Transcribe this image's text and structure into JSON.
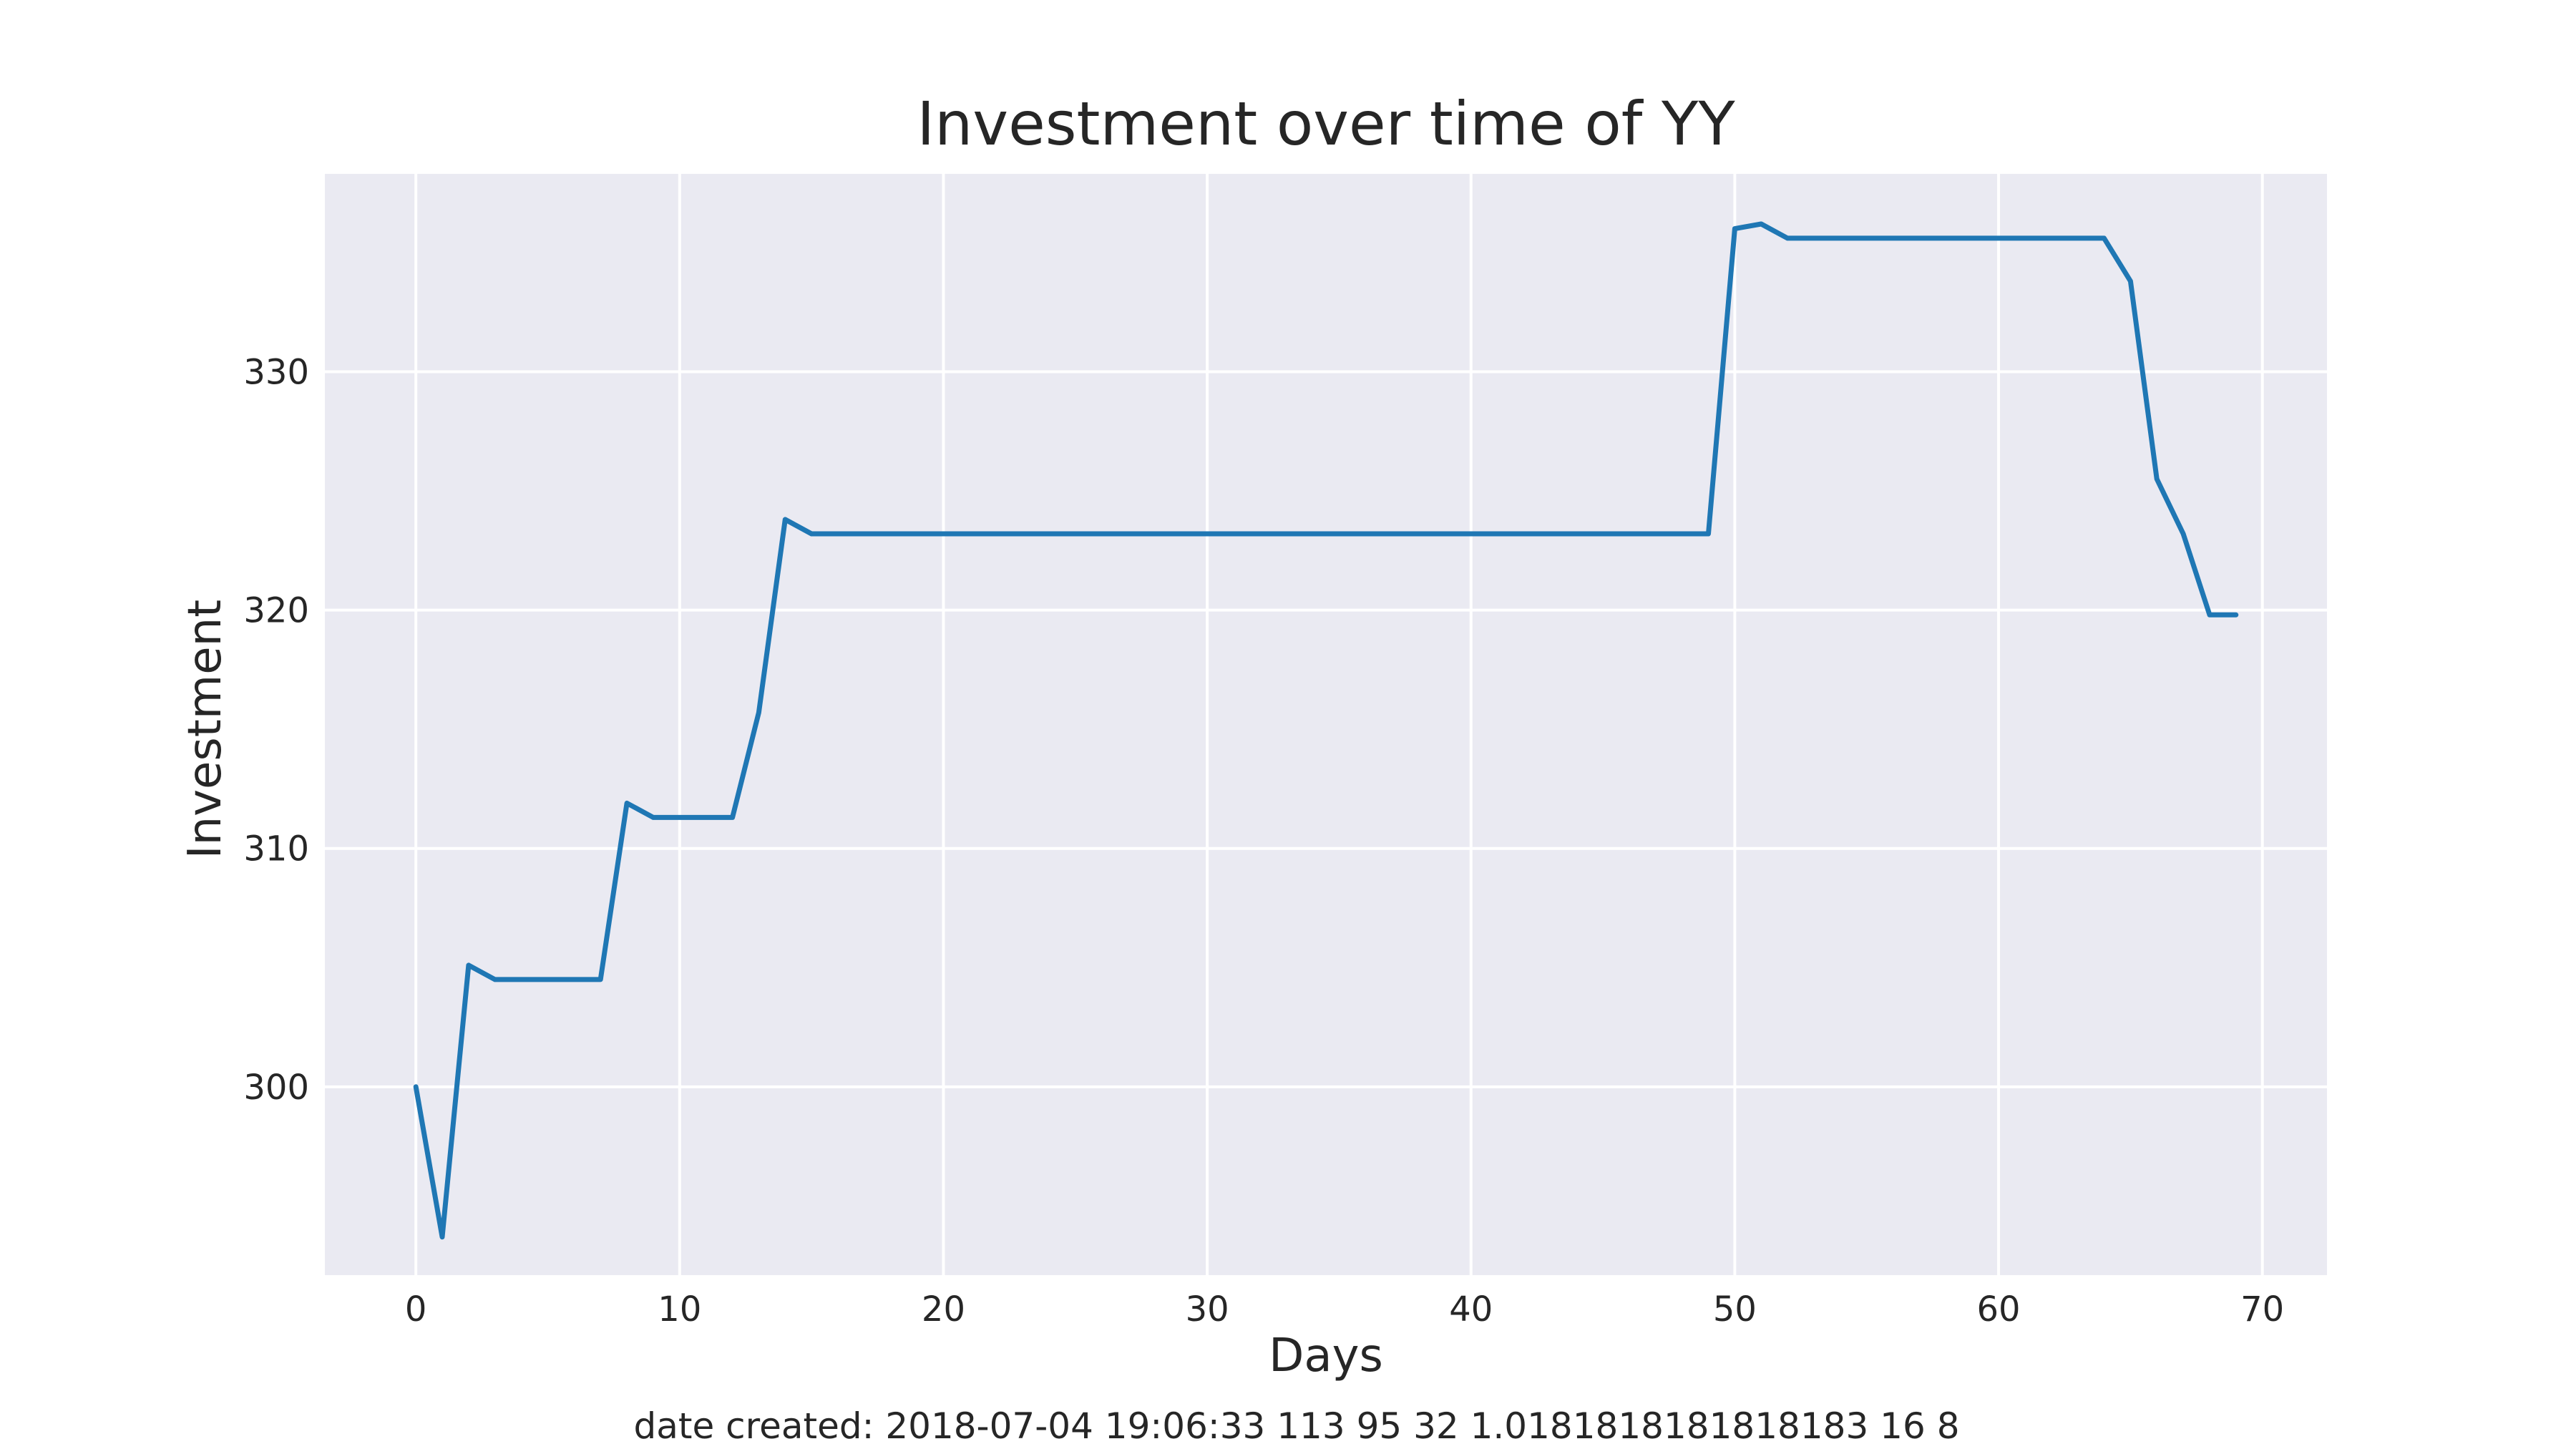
{
  "chart_data": {
    "type": "line",
    "title": "Investment over time of YY",
    "xlabel": "Days",
    "ylabel": "Investment",
    "footer": "date created: 2018-07-04 19:06:33 113 95 32 1.0181818181818183 16 8",
    "xlim": [
      -3.45,
      72.45
    ],
    "ylim": [
      292.1,
      338.3
    ],
    "xticks": [
      0,
      10,
      20,
      30,
      40,
      50,
      60,
      70
    ],
    "yticks": [
      300,
      310,
      320,
      330
    ],
    "grid": true,
    "style": {
      "plot_background": "#eaeaf2",
      "grid_color": "#ffffff",
      "line_color": "#1f77b4",
      "text_color": "#262626"
    },
    "series": [
      {
        "x": [
          0,
          1,
          2,
          3,
          4,
          5,
          6,
          7,
          8,
          9,
          10,
          11,
          12,
          13,
          14,
          15,
          16,
          17,
          18,
          19,
          20,
          21,
          22,
          23,
          24,
          25,
          26,
          27,
          28,
          29,
          30,
          31,
          32,
          33,
          34,
          35,
          36,
          37,
          38,
          39,
          40,
          41,
          42,
          43,
          44,
          45,
          46,
          47,
          48,
          49,
          50,
          51,
          52,
          53,
          54,
          55,
          56,
          57,
          58,
          59,
          60,
          61,
          62,
          63,
          64,
          65,
          66,
          67,
          68,
          69
        ],
        "y": [
          300.0,
          293.7,
          305.1,
          304.5,
          304.5,
          304.5,
          304.5,
          304.5,
          311.9,
          311.3,
          311.3,
          311.3,
          311.3,
          315.7,
          323.8,
          323.2,
          323.2,
          323.2,
          323.2,
          323.2,
          323.2,
          323.2,
          323.2,
          323.2,
          323.2,
          323.2,
          323.2,
          323.2,
          323.2,
          323.2,
          323.2,
          323.2,
          323.2,
          323.2,
          323.2,
          323.2,
          323.2,
          323.2,
          323.2,
          323.2,
          323.2,
          323.2,
          323.2,
          323.2,
          323.2,
          323.2,
          323.2,
          323.2,
          323.2,
          323.2,
          336.0,
          336.2,
          335.6,
          335.6,
          335.6,
          335.6,
          335.6,
          335.6,
          335.6,
          335.6,
          335.6,
          335.6,
          335.6,
          335.6,
          335.6,
          333.8,
          325.5,
          323.2,
          319.8,
          319.8
        ]
      }
    ]
  }
}
